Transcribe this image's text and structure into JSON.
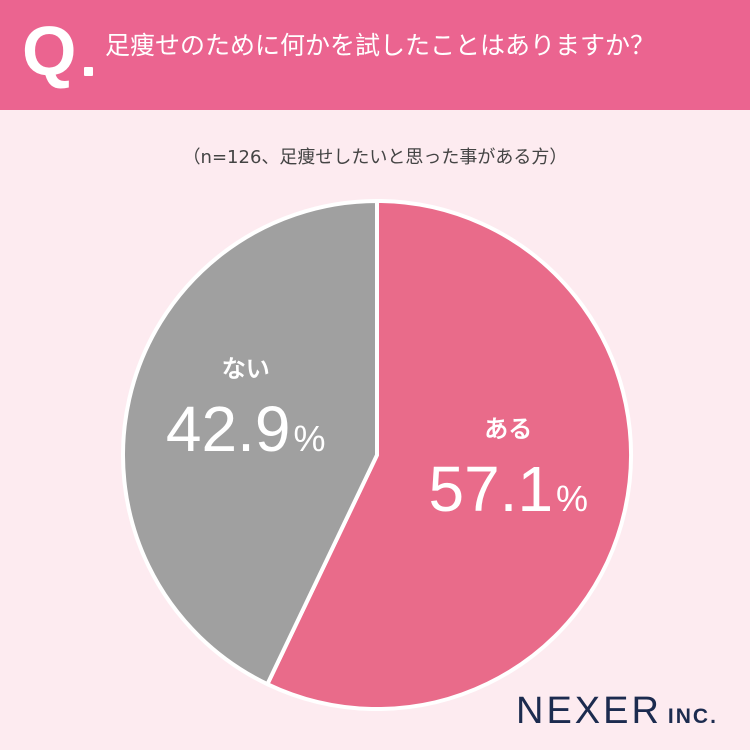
{
  "header": {
    "q_mark": "Q",
    "question": "足痩せのために何かを試したことはありますか？"
  },
  "note": "（n=126、足痩せしたいと思った事がある方）",
  "chart_data": {
    "type": "pie",
    "categories": [
      "ある",
      "ない"
    ],
    "values": [
      57.1,
      42.9
    ],
    "value_suffix": "%",
    "colors": [
      "#e96b8a",
      "#a0a0a0"
    ],
    "start": "12 o'clock, clockwise"
  },
  "brand": {
    "name": "NEXER",
    "suffix": "INC."
  }
}
